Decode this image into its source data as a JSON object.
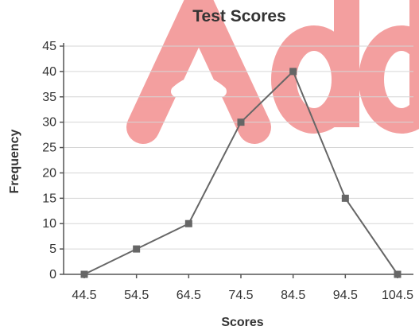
{
  "watermark": {
    "text": "Add",
    "color": "#f07f7f"
  },
  "chart_data": {
    "type": "line",
    "title": "Test Scores",
    "xlabel": "Scores",
    "ylabel": "Frequency",
    "x": [
      44.5,
      54.5,
      64.5,
      74.5,
      84.5,
      94.5,
      104.5
    ],
    "x_ticks": [
      "44.5",
      "54.5",
      "64.5",
      "74.5",
      "84.5",
      "94.5",
      "104.5"
    ],
    "y_ticks": [
      0,
      5,
      10,
      15,
      20,
      25,
      30,
      35,
      40,
      45
    ],
    "ylim": [
      0,
      45
    ],
    "xlim": [
      44.5,
      104.5
    ],
    "grid": true,
    "series": [
      {
        "values": [
          0,
          5,
          10,
          30,
          40,
          15,
          0
        ],
        "color": "#666666",
        "marker": "square"
      }
    ]
  }
}
